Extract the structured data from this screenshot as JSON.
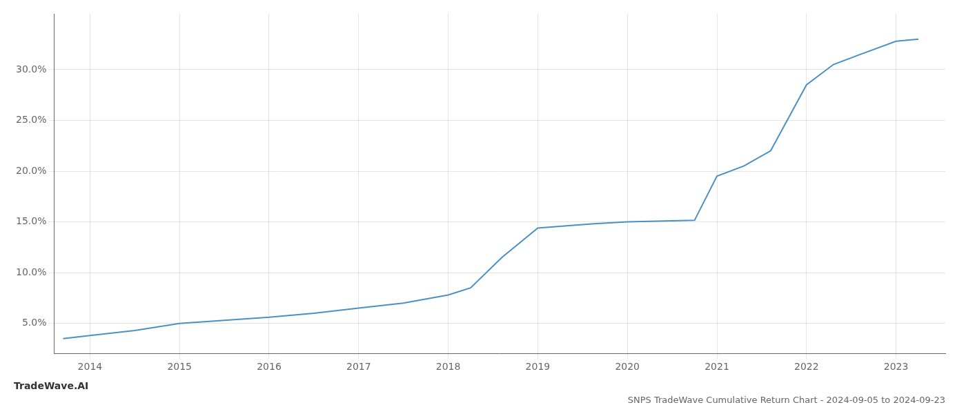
{
  "chart_data": {
    "type": "line",
    "title": "SNPS TradeWave Cumulative Return Chart - 2024-09-05 to 2024-09-23",
    "annotations": [
      "TradeWave.AI"
    ],
    "x": [
      2013.7,
      2014.0,
      2014.5,
      2015.0,
      2015.5,
      2016.0,
      2016.5,
      2017.0,
      2017.5,
      2018.0,
      2018.25,
      2018.6,
      2019.0,
      2019.3,
      2019.6,
      2020.0,
      2020.5,
      2020.75,
      2021.0,
      2021.3,
      2021.6,
      2022.0,
      2022.3,
      2022.6,
      2023.0,
      2023.25
    ],
    "values": [
      3.5,
      3.8,
      4.3,
      5.0,
      5.3,
      5.6,
      6.0,
      6.5,
      7.0,
      7.8,
      8.5,
      11.5,
      14.4,
      14.6,
      14.8,
      15.0,
      15.1,
      15.15,
      19.5,
      20.5,
      22.0,
      28.5,
      30.5,
      31.5,
      32.8,
      33.0
    ],
    "color": "#4a90c4",
    "xlim": [
      2013.6,
      2023.55
    ],
    "xticks": [
      2014,
      2015,
      2016,
      2017,
      2018,
      2019,
      2020,
      2021,
      2022,
      2023
    ],
    "ylim": [
      2.0,
      35.5
    ],
    "yticks": [
      {
        "value": 5.0,
        "label": "5.0%"
      },
      {
        "value": 10.0,
        "label": "10.0%"
      },
      {
        "value": 15.0,
        "label": "15.0%"
      },
      {
        "value": 20.0,
        "label": "20.0%"
      },
      {
        "value": 25.0,
        "label": "25.0%"
      },
      {
        "value": 30.0,
        "label": "30.0%"
      }
    ],
    "grid": true
  }
}
